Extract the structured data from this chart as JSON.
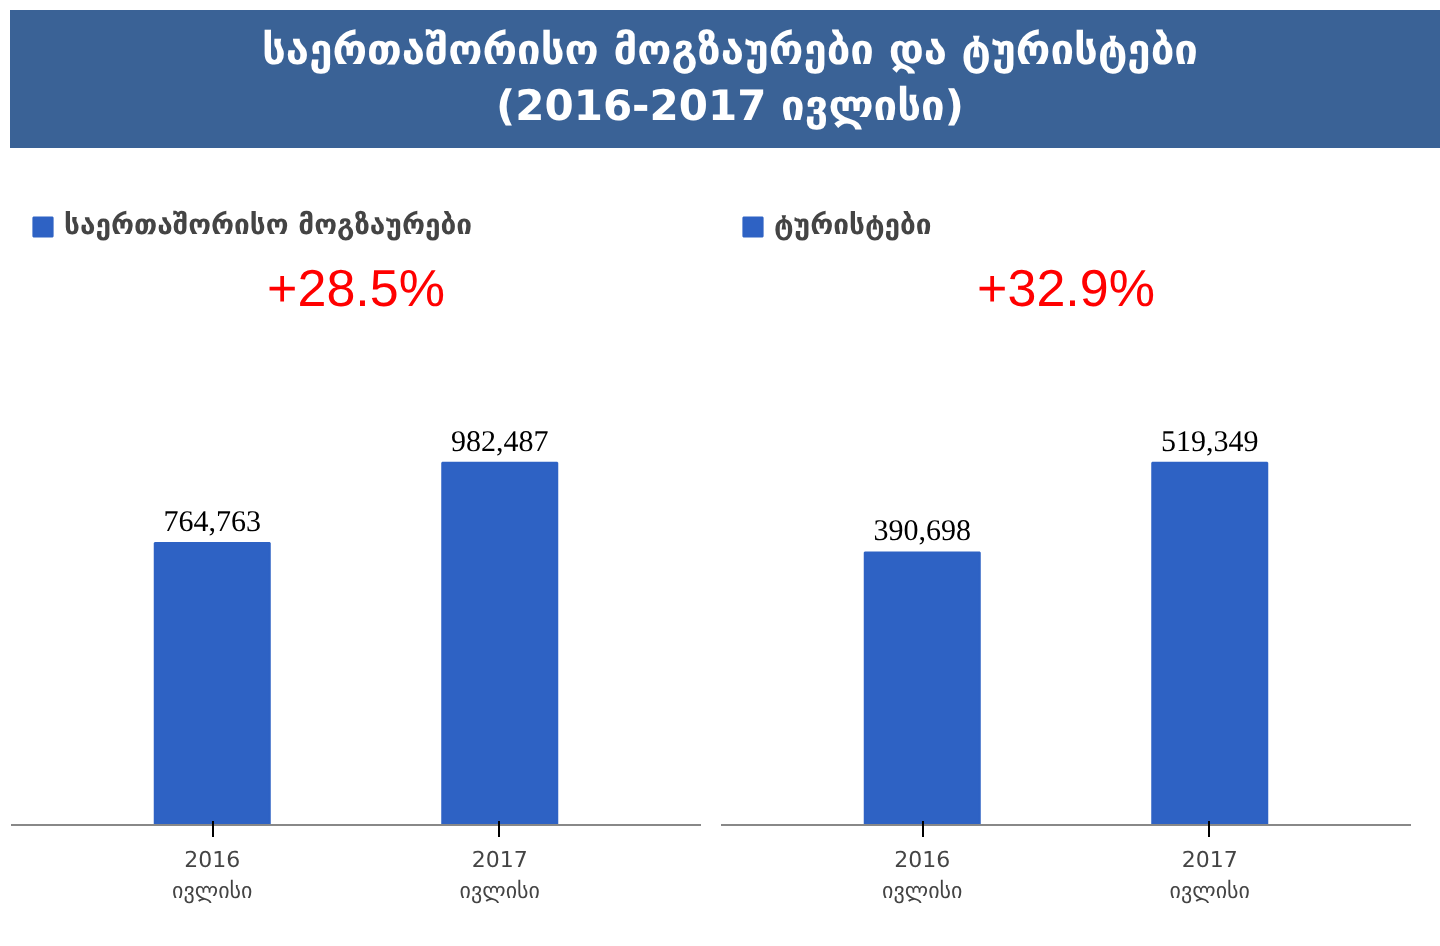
{
  "chart_data": [
    {
      "type": "bar",
      "title": "საერთაშორისო მოგზაურები და ტურისტები\n(2016-2017 ივლისი)",
      "categories": [
        "2016\nივლისი",
        "2017\nივლისი"
      ],
      "series": [
        {
          "name": "საერთაშორისო მოგზაურები",
          "color": "#2e62c4",
          "values": [
            764763,
            982487
          ],
          "value_labels": [
            "764,763",
            "982,487"
          ]
        }
      ],
      "annotations": [
        "+28.5%"
      ],
      "legend": "top left",
      "grid": false
    },
    {
      "type": "bar",
      "categories": [
        "2016\nივლისი",
        "2017\nივლისი"
      ],
      "series": [
        {
          "name": "ტურისტები",
          "color": "#2e62c4",
          "values": [
            390698,
            519349
          ],
          "value_labels": [
            "390,698",
            "519,349"
          ]
        }
      ],
      "annotations": [
        "+32.9%"
      ],
      "legend": "top left",
      "grid": false
    }
  ]
}
